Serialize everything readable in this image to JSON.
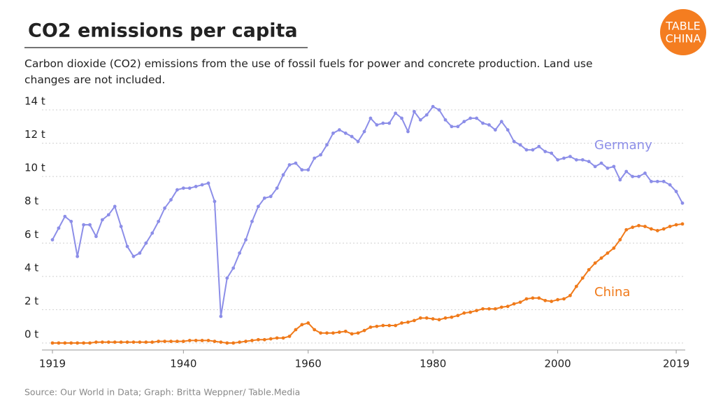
{
  "logo": [
    "TABLE",
    "CHINA"
  ],
  "chart_data": {
    "type": "line",
    "title": "CO2 emissions per capita",
    "subtitle": "Carbon dioxide (CO2) emissions from the use of fossil fuels for power and concrete production. Land use changes are not included.",
    "source": "Source: Our World in Data; Graph: Britta Weppner/ Table.Media",
    "x": [
      1919,
      1920,
      1921,
      1922,
      1923,
      1924,
      1925,
      1926,
      1927,
      1928,
      1929,
      1930,
      1931,
      1932,
      1933,
      1934,
      1935,
      1936,
      1937,
      1938,
      1939,
      1940,
      1941,
      1942,
      1943,
      1944,
      1945,
      1946,
      1947,
      1948,
      1949,
      1950,
      1951,
      1952,
      1953,
      1954,
      1955,
      1956,
      1957,
      1958,
      1959,
      1960,
      1961,
      1962,
      1963,
      1964,
      1965,
      1966,
      1967,
      1968,
      1969,
      1970,
      1971,
      1972,
      1973,
      1974,
      1975,
      1976,
      1977,
      1978,
      1979,
      1980,
      1981,
      1982,
      1983,
      1984,
      1985,
      1986,
      1987,
      1988,
      1989,
      1990,
      1991,
      1992,
      1993,
      1994,
      1995,
      1996,
      1997,
      1998,
      1999,
      2000,
      2001,
      2002,
      2003,
      2004,
      2005,
      2006,
      2007,
      2008,
      2009,
      2010,
      2011,
      2012,
      2013,
      2014,
      2015,
      2016,
      2017,
      2018,
      2019,
      2020
    ],
    "series": [
      {
        "name": "Germany",
        "color": "#8c8ee8",
        "values": [
          6.2,
          6.9,
          7.6,
          7.3,
          5.2,
          7.1,
          7.1,
          6.4,
          7.4,
          7.7,
          8.2,
          7.0,
          5.8,
          5.2,
          5.4,
          6.0,
          6.6,
          7.3,
          8.1,
          8.6,
          9.2,
          9.3,
          9.3,
          9.4,
          9.5,
          9.6,
          8.5,
          1.6,
          3.9,
          4.5,
          5.4,
          6.2,
          7.3,
          8.2,
          8.7,
          8.8,
          9.3,
          10.1,
          10.7,
          10.8,
          10.4,
          10.4,
          11.1,
          11.3,
          11.9,
          12.6,
          12.8,
          12.6,
          12.4,
          12.1,
          12.7,
          13.5,
          13.1,
          13.2,
          13.2,
          13.8,
          13.5,
          12.7,
          13.9,
          13.4,
          13.7,
          14.2,
          14.0,
          13.4,
          13.0,
          13.0,
          13.3,
          13.5,
          13.5,
          13.2,
          13.1,
          12.8,
          13.3,
          12.8,
          12.1,
          11.9,
          11.6,
          11.6,
          11.8,
          11.5,
          11.4,
          11.0,
          11.1,
          11.2,
          11.0,
          11.0,
          10.9,
          10.6,
          10.8,
          10.5,
          10.6,
          9.8,
          10.3,
          10.0,
          10.0,
          10.2,
          9.7,
          9.7,
          9.7,
          9.5,
          9.1,
          8.4
        ]
      },
      {
        "name": "China",
        "color": "#f07a1a",
        "values": [
          0.0,
          0.0,
          0.0,
          0.0,
          0.0,
          0.0,
          0.0,
          0.05,
          0.05,
          0.05,
          0.05,
          0.05,
          0.05,
          0.05,
          0.05,
          0.05,
          0.05,
          0.1,
          0.1,
          0.1,
          0.1,
          0.1,
          0.15,
          0.15,
          0.15,
          0.15,
          0.1,
          0.05,
          0.0,
          0.0,
          0.05,
          0.1,
          0.15,
          0.2,
          0.2,
          0.25,
          0.3,
          0.3,
          0.4,
          0.8,
          1.1,
          1.2,
          0.8,
          0.6,
          0.6,
          0.6,
          0.65,
          0.7,
          0.55,
          0.6,
          0.75,
          0.95,
          1.0,
          1.05,
          1.05,
          1.05,
          1.2,
          1.25,
          1.35,
          1.5,
          1.5,
          1.45,
          1.4,
          1.5,
          1.55,
          1.65,
          1.8,
          1.85,
          1.95,
          2.05,
          2.05,
          2.05,
          2.15,
          2.2,
          2.35,
          2.45,
          2.65,
          2.7,
          2.7,
          2.55,
          2.5,
          2.6,
          2.65,
          2.85,
          3.4,
          3.9,
          4.4,
          4.8,
          5.1,
          5.4,
          5.7,
          6.2,
          6.8,
          6.95,
          7.05,
          7.0,
          6.85,
          6.75,
          6.85,
          7.0,
          7.1,
          7.15
        ]
      }
    ],
    "xlim": [
      1919,
      2020
    ],
    "xticks": [
      1919,
      1940,
      1960,
      1980,
      2000,
      2019
    ],
    "ylim": [
      0,
      14
    ],
    "yticks": [
      {
        "value": 0,
        "label": "0 t"
      },
      {
        "value": 2,
        "label": "2 t"
      },
      {
        "value": 4,
        "label": "4 t"
      },
      {
        "value": 6,
        "label": "6 t"
      },
      {
        "value": 8,
        "label": "8 t"
      },
      {
        "value": 10,
        "label": "10 t"
      },
      {
        "value": 12,
        "label": "12 t"
      },
      {
        "value": 14,
        "label": "14 t"
      }
    ],
    "grid": true
  }
}
